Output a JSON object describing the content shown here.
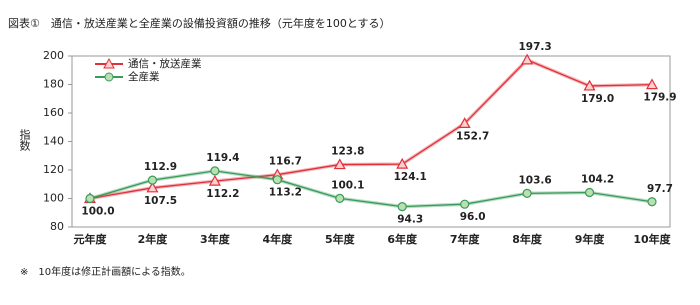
{
  "chart_data": {
    "type": "line",
    "title": "図表①　通信・放送産業と全産業の設備投資額の推移（元年度を100とする）",
    "y_label": "指数",
    "footnote": "※　10年度は修正計画額による指数。",
    "categories": [
      "元年度",
      "2年度",
      "3年度",
      "4年度",
      "5年度",
      "6年度",
      "7年度",
      "8年度",
      "9年度",
      "10年度"
    ],
    "series": [
      {
        "name": "通信・放送産業",
        "color": "#e0303a",
        "marker": "triangle",
        "values": [
          100.0,
          107.5,
          112.2,
          116.7,
          123.8,
          124.1,
          152.7,
          197.3,
          179.0,
          179.9
        ],
        "value_labels": [
          "100.0",
          "107.5",
          "112.2",
          "116.7",
          "123.8",
          "124.1",
          "152.7",
          "197.3",
          "179.0",
          "179.9"
        ]
      },
      {
        "name": "全産業",
        "color": "#3a9a5a",
        "marker": "circle",
        "values": [
          100.0,
          112.9,
          119.4,
          113.2,
          100.1,
          94.3,
          96.0,
          103.6,
          104.2,
          97.7
        ],
        "value_labels": [
          null,
          "112.9",
          "119.4",
          "113.2",
          "100.1",
          "94.3",
          "96.0",
          "103.6",
          "104.2",
          "97.7"
        ]
      }
    ],
    "ylim": [
      80,
      200
    ],
    "yticks": [
      80,
      100,
      120,
      140,
      160,
      180,
      200
    ],
    "grid": false,
    "legend": "top-left"
  }
}
